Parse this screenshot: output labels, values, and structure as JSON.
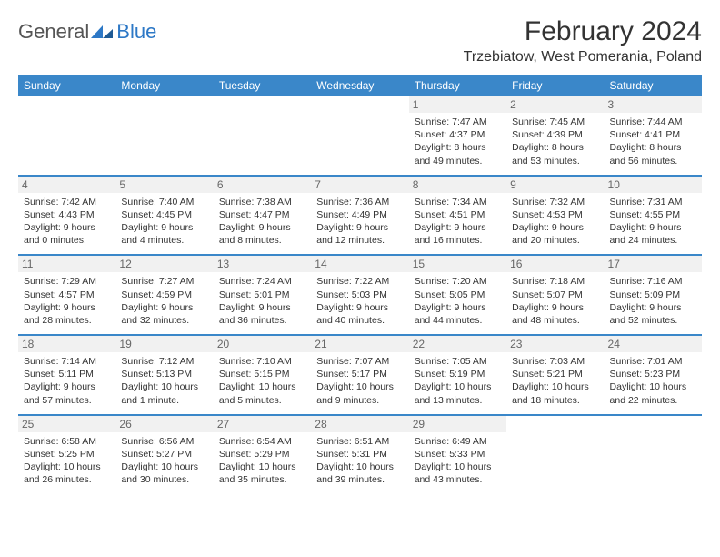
{
  "logo": {
    "general": "General",
    "blue": "Blue"
  },
  "title": "February 2024",
  "location": "Trzebiatow, West Pomerania, Poland",
  "colors": {
    "header_bg": "#3a87c9",
    "header_text": "#ffffff",
    "daynum_bg": "#f1f1f1",
    "border": "#3a87c9",
    "logo_blue": "#2d78c6"
  },
  "weekdays": [
    "Sunday",
    "Monday",
    "Tuesday",
    "Wednesday",
    "Thursday",
    "Friday",
    "Saturday"
  ],
  "weeks": [
    [
      {
        "day": "",
        "sunrise": "",
        "sunset": "",
        "daylight": ""
      },
      {
        "day": "",
        "sunrise": "",
        "sunset": "",
        "daylight": ""
      },
      {
        "day": "",
        "sunrise": "",
        "sunset": "",
        "daylight": ""
      },
      {
        "day": "",
        "sunrise": "",
        "sunset": "",
        "daylight": ""
      },
      {
        "day": "1",
        "sunrise": "Sunrise: 7:47 AM",
        "sunset": "Sunset: 4:37 PM",
        "daylight": "Daylight: 8 hours and 49 minutes."
      },
      {
        "day": "2",
        "sunrise": "Sunrise: 7:45 AM",
        "sunset": "Sunset: 4:39 PM",
        "daylight": "Daylight: 8 hours and 53 minutes."
      },
      {
        "day": "3",
        "sunrise": "Sunrise: 7:44 AM",
        "sunset": "Sunset: 4:41 PM",
        "daylight": "Daylight: 8 hours and 56 minutes."
      }
    ],
    [
      {
        "day": "4",
        "sunrise": "Sunrise: 7:42 AM",
        "sunset": "Sunset: 4:43 PM",
        "daylight": "Daylight: 9 hours and 0 minutes."
      },
      {
        "day": "5",
        "sunrise": "Sunrise: 7:40 AM",
        "sunset": "Sunset: 4:45 PM",
        "daylight": "Daylight: 9 hours and 4 minutes."
      },
      {
        "day": "6",
        "sunrise": "Sunrise: 7:38 AM",
        "sunset": "Sunset: 4:47 PM",
        "daylight": "Daylight: 9 hours and 8 minutes."
      },
      {
        "day": "7",
        "sunrise": "Sunrise: 7:36 AM",
        "sunset": "Sunset: 4:49 PM",
        "daylight": "Daylight: 9 hours and 12 minutes."
      },
      {
        "day": "8",
        "sunrise": "Sunrise: 7:34 AM",
        "sunset": "Sunset: 4:51 PM",
        "daylight": "Daylight: 9 hours and 16 minutes."
      },
      {
        "day": "9",
        "sunrise": "Sunrise: 7:32 AM",
        "sunset": "Sunset: 4:53 PM",
        "daylight": "Daylight: 9 hours and 20 minutes."
      },
      {
        "day": "10",
        "sunrise": "Sunrise: 7:31 AM",
        "sunset": "Sunset: 4:55 PM",
        "daylight": "Daylight: 9 hours and 24 minutes."
      }
    ],
    [
      {
        "day": "11",
        "sunrise": "Sunrise: 7:29 AM",
        "sunset": "Sunset: 4:57 PM",
        "daylight": "Daylight: 9 hours and 28 minutes."
      },
      {
        "day": "12",
        "sunrise": "Sunrise: 7:27 AM",
        "sunset": "Sunset: 4:59 PM",
        "daylight": "Daylight: 9 hours and 32 minutes."
      },
      {
        "day": "13",
        "sunrise": "Sunrise: 7:24 AM",
        "sunset": "Sunset: 5:01 PM",
        "daylight": "Daylight: 9 hours and 36 minutes."
      },
      {
        "day": "14",
        "sunrise": "Sunrise: 7:22 AM",
        "sunset": "Sunset: 5:03 PM",
        "daylight": "Daylight: 9 hours and 40 minutes."
      },
      {
        "day": "15",
        "sunrise": "Sunrise: 7:20 AM",
        "sunset": "Sunset: 5:05 PM",
        "daylight": "Daylight: 9 hours and 44 minutes."
      },
      {
        "day": "16",
        "sunrise": "Sunrise: 7:18 AM",
        "sunset": "Sunset: 5:07 PM",
        "daylight": "Daylight: 9 hours and 48 minutes."
      },
      {
        "day": "17",
        "sunrise": "Sunrise: 7:16 AM",
        "sunset": "Sunset: 5:09 PM",
        "daylight": "Daylight: 9 hours and 52 minutes."
      }
    ],
    [
      {
        "day": "18",
        "sunrise": "Sunrise: 7:14 AM",
        "sunset": "Sunset: 5:11 PM",
        "daylight": "Daylight: 9 hours and 57 minutes."
      },
      {
        "day": "19",
        "sunrise": "Sunrise: 7:12 AM",
        "sunset": "Sunset: 5:13 PM",
        "daylight": "Daylight: 10 hours and 1 minute."
      },
      {
        "day": "20",
        "sunrise": "Sunrise: 7:10 AM",
        "sunset": "Sunset: 5:15 PM",
        "daylight": "Daylight: 10 hours and 5 minutes."
      },
      {
        "day": "21",
        "sunrise": "Sunrise: 7:07 AM",
        "sunset": "Sunset: 5:17 PM",
        "daylight": "Daylight: 10 hours and 9 minutes."
      },
      {
        "day": "22",
        "sunrise": "Sunrise: 7:05 AM",
        "sunset": "Sunset: 5:19 PM",
        "daylight": "Daylight: 10 hours and 13 minutes."
      },
      {
        "day": "23",
        "sunrise": "Sunrise: 7:03 AM",
        "sunset": "Sunset: 5:21 PM",
        "daylight": "Daylight: 10 hours and 18 minutes."
      },
      {
        "day": "24",
        "sunrise": "Sunrise: 7:01 AM",
        "sunset": "Sunset: 5:23 PM",
        "daylight": "Daylight: 10 hours and 22 minutes."
      }
    ],
    [
      {
        "day": "25",
        "sunrise": "Sunrise: 6:58 AM",
        "sunset": "Sunset: 5:25 PM",
        "daylight": "Daylight: 10 hours and 26 minutes."
      },
      {
        "day": "26",
        "sunrise": "Sunrise: 6:56 AM",
        "sunset": "Sunset: 5:27 PM",
        "daylight": "Daylight: 10 hours and 30 minutes."
      },
      {
        "day": "27",
        "sunrise": "Sunrise: 6:54 AM",
        "sunset": "Sunset: 5:29 PM",
        "daylight": "Daylight: 10 hours and 35 minutes."
      },
      {
        "day": "28",
        "sunrise": "Sunrise: 6:51 AM",
        "sunset": "Sunset: 5:31 PM",
        "daylight": "Daylight: 10 hours and 39 minutes."
      },
      {
        "day": "29",
        "sunrise": "Sunrise: 6:49 AM",
        "sunset": "Sunset: 5:33 PM",
        "daylight": "Daylight: 10 hours and 43 minutes."
      },
      {
        "day": "",
        "sunrise": "",
        "sunset": "",
        "daylight": ""
      },
      {
        "day": "",
        "sunrise": "",
        "sunset": "",
        "daylight": ""
      }
    ]
  ]
}
